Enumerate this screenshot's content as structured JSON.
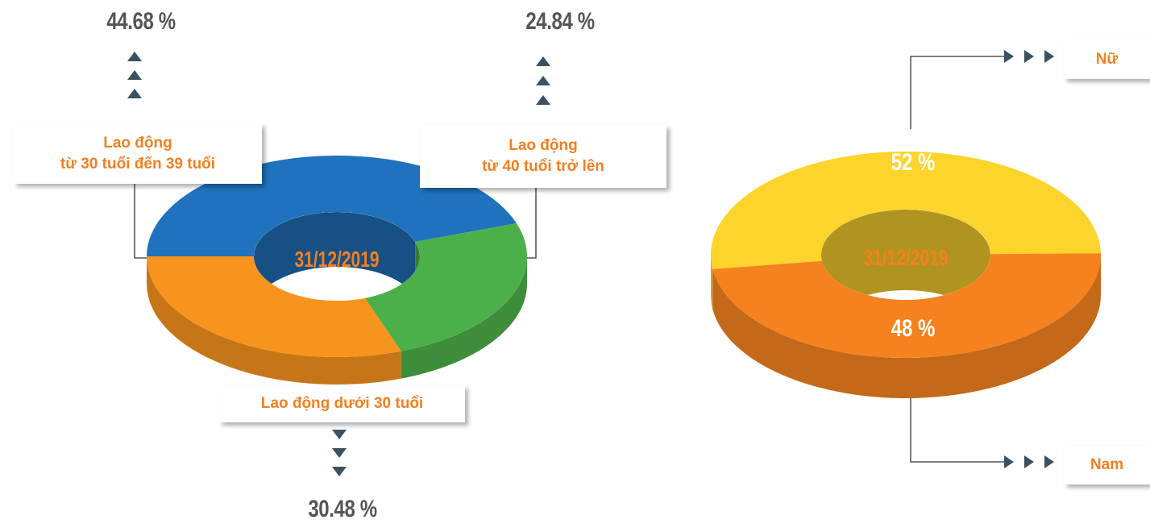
{
  "chart_data": [
    {
      "type": "donut",
      "center_label": "31/12/2019",
      "categories": [
        "Lao động\ntừ 30 tuổi đến 39 tuổi",
        "Lao động\ntừ 40 tuổi trở lên",
        "Lao động dưới 30 tuổi"
      ],
      "values": [
        44.68,
        24.84,
        30.48
      ],
      "value_labels": [
        "44.68 %",
        "24.84 %",
        "30.48 %"
      ],
      "colors": [
        "#1f72bd",
        "#4cb04a",
        "#f7941d"
      ]
    },
    {
      "type": "donut",
      "center_label": "31/12/2019",
      "categories": [
        "Nữ",
        "Nam"
      ],
      "values": [
        52,
        48
      ],
      "value_labels": [
        "52 %",
        "48 %"
      ],
      "colors": [
        "#fcd42c",
        "#f5821f"
      ]
    }
  ]
}
